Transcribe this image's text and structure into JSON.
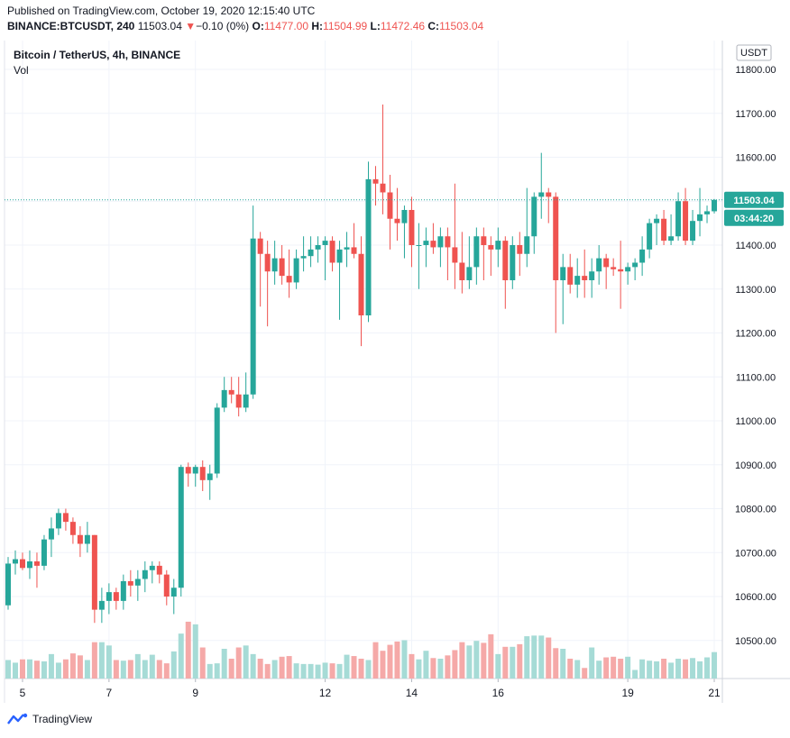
{
  "header": {
    "published": "Published on TradingView.com, October 19, 2020 12:15:40 UTC",
    "symbol": "BINANCE:BTCUSDT, 240",
    "last": "11503.04",
    "change_arrow": "▼",
    "change": "−0.10 (0%)",
    "o_label": "O:",
    "o_value": "11477.00",
    "h_label": "H:",
    "h_value": "11504.99",
    "l_label": "L:",
    "l_value": "11472.46",
    "c_label": "C:",
    "c_value": "11503.04"
  },
  "legend": {
    "title": "Bitcoin / TetherUS, 4h, BINANCE",
    "volume_label": "Vol"
  },
  "brand": {
    "name": "TradingView",
    "logo_icon": "tradingview-logo-icon"
  },
  "colors": {
    "up": "#26a69a",
    "down": "#ef5350",
    "vol_up": "#a6dbd6",
    "vol_down": "#f5a9a8",
    "grid": "#f0f3fa",
    "price_line": "#26a69a"
  },
  "chart_data": {
    "type": "candlestick",
    "title": "Bitcoin / TetherUS, 4h, BINANCE",
    "currency_label": "USDT",
    "ylim": [
      10420,
      11830
    ],
    "y_ticks": [
      "10500.00",
      "10600.00",
      "10700.00",
      "10800.00",
      "10900.00",
      "11000.00",
      "11100.00",
      "11200.00",
      "11300.00",
      "11400.00",
      "11500.00",
      "11600.00",
      "11700.00",
      "11800.00"
    ],
    "x_ticks": [
      {
        "label": "5",
        "index": 2
      },
      {
        "label": "7",
        "index": 14
      },
      {
        "label": "9",
        "index": 26
      },
      {
        "label": "12",
        "index": 44
      },
      {
        "label": "14",
        "index": 56
      },
      {
        "label": "16",
        "index": 68
      },
      {
        "label": "19",
        "index": 86
      },
      {
        "label": "21",
        "index": 98
      }
    ],
    "bar_count": 99,
    "last_price": "11503.04",
    "countdown": "03:44:20",
    "grid": true,
    "candles": [
      [
        10580,
        10690,
        10570,
        10675
      ],
      [
        10675,
        10705,
        10650,
        10685
      ],
      [
        10685,
        10700,
        10660,
        10665
      ],
      [
        10665,
        10705,
        10640,
        10680
      ],
      [
        10680,
        10700,
        10620,
        10670
      ],
      [
        10670,
        10740,
        10660,
        10730
      ],
      [
        10730,
        10780,
        10690,
        10755
      ],
      [
        10755,
        10800,
        10740,
        10790
      ],
      [
        10790,
        10800,
        10750,
        10770
      ],
      [
        10770,
        10780,
        10720,
        10740
      ],
      [
        10740,
        10760,
        10690,
        10720
      ],
      [
        10720,
        10770,
        10700,
        10740
      ],
      [
        10740,
        10740,
        10540,
        10570
      ],
      [
        10570,
        10620,
        10540,
        10590
      ],
      [
        10590,
        10630,
        10560,
        10610
      ],
      [
        10610,
        10620,
        10570,
        10590
      ],
      [
        10590,
        10650,
        10570,
        10635
      ],
      [
        10635,
        10660,
        10600,
        10625
      ],
      [
        10625,
        10660,
        10590,
        10640
      ],
      [
        10640,
        10680,
        10610,
        10660
      ],
      [
        10660,
        10680,
        10630,
        10670
      ],
      [
        10670,
        10680,
        10630,
        10650
      ],
      [
        10650,
        10660,
        10580,
        10600
      ],
      [
        10600,
        10640,
        10560,
        10620
      ],
      [
        10620,
        10900,
        10600,
        10895
      ],
      [
        10895,
        10905,
        10850,
        10880
      ],
      [
        10880,
        10900,
        10850,
        10895
      ],
      [
        10895,
        10910,
        10840,
        10865
      ],
      [
        10865,
        10900,
        10820,
        10880
      ],
      [
        10880,
        11040,
        10870,
        11030
      ],
      [
        11030,
        11100,
        11020,
        11070
      ],
      [
        11070,
        11100,
        11040,
        11060
      ],
      [
        11060,
        11100,
        11010,
        11030
      ],
      [
        11030,
        11110,
        11020,
        11060
      ],
      [
        11060,
        11490,
        11050,
        11415
      ],
      [
        11415,
        11430,
        11260,
        11380
      ],
      [
        11380,
        11410,
        11215,
        11340
      ],
      [
        11340,
        11410,
        11310,
        11370
      ],
      [
        11370,
        11400,
        11310,
        11330
      ],
      [
        11330,
        11390,
        11280,
        11315
      ],
      [
        11315,
        11390,
        11300,
        11370
      ],
      [
        11370,
        11420,
        11340,
        11375
      ],
      [
        11375,
        11420,
        11350,
        11390
      ],
      [
        11390,
        11420,
        11360,
        11400
      ],
      [
        11400,
        11420,
        11320,
        11410
      ],
      [
        11410,
        11420,
        11340,
        11360
      ],
      [
        11360,
        11410,
        11230,
        11390
      ],
      [
        11390,
        11430,
        11350,
        11395
      ],
      [
        11395,
        11450,
        11370,
        11380
      ],
      [
        11380,
        11420,
        11170,
        11240
      ],
      [
        11240,
        11590,
        11225,
        11550
      ],
      [
        11550,
        11580,
        11490,
        11540
      ],
      [
        11540,
        11720,
        11470,
        11520
      ],
      [
        11520,
        11560,
        11390,
        11460
      ],
      [
        11460,
        11530,
        11410,
        11450
      ],
      [
        11450,
        11490,
        11370,
        11480
      ],
      [
        11480,
        11510,
        11350,
        11400
      ],
      [
        11400,
        11450,
        11300,
        11400
      ],
      [
        11400,
        11440,
        11350,
        11410
      ],
      [
        11410,
        11450,
        11380,
        11395
      ],
      [
        11395,
        11440,
        11350,
        11420
      ],
      [
        11420,
        11440,
        11320,
        11395
      ],
      [
        11395,
        11540,
        11300,
        11360
      ],
      [
        11360,
        11430,
        11290,
        11320
      ],
      [
        11320,
        11420,
        11300,
        11350
      ],
      [
        11350,
        11440,
        11310,
        11420
      ],
      [
        11420,
        11440,
        11320,
        11400
      ],
      [
        11400,
        11420,
        11330,
        11390
      ],
      [
        11390,
        11440,
        11350,
        11410
      ],
      [
        11410,
        11420,
        11255,
        11320
      ],
      [
        11320,
        11420,
        11300,
        11400
      ],
      [
        11400,
        11430,
        11330,
        11380
      ],
      [
        11380,
        11530,
        11350,
        11420
      ],
      [
        11420,
        11520,
        11380,
        11510
      ],
      [
        11510,
        11610,
        11460,
        11520
      ],
      [
        11520,
        11530,
        11450,
        11510
      ],
      [
        11510,
        11520,
        11200,
        11320
      ],
      [
        11320,
        11380,
        11220,
        11350
      ],
      [
        11350,
        11380,
        11290,
        11310
      ],
      [
        11310,
        11370,
        11280,
        11330
      ],
      [
        11330,
        11390,
        11280,
        11320
      ],
      [
        11320,
        11370,
        11280,
        11340
      ],
      [
        11340,
        11400,
        11310,
        11370
      ],
      [
        11370,
        11380,
        11300,
        11350
      ],
      [
        11350,
        11370,
        11330,
        11345
      ],
      [
        11345,
        11410,
        11255,
        11340
      ],
      [
        11340,
        11360,
        11310,
        11350
      ],
      [
        11350,
        11370,
        11320,
        11360
      ],
      [
        11360,
        11420,
        11330,
        11390
      ],
      [
        11390,
        11460,
        11370,
        11450
      ],
      [
        11450,
        11470,
        11400,
        11460
      ],
      [
        11460,
        11480,
        11400,
        11410
      ],
      [
        11410,
        11470,
        11400,
        11420
      ],
      [
        11420,
        11520,
        11410,
        11500
      ],
      [
        11500,
        11530,
        11400,
        11410
      ],
      [
        11410,
        11480,
        11400,
        11455
      ],
      [
        11455,
        11530,
        11420,
        11470
      ],
      [
        11470,
        11490,
        11450,
        11477
      ],
      [
        11477,
        11505,
        11472,
        11503
      ]
    ],
    "volume_ylim": [
      0,
      150
    ],
    "volumes": [
      28,
      24,
      29,
      29,
      27,
      26,
      37,
      24,
      29,
      38,
      35,
      28,
      55,
      55,
      50,
      28,
      27,
      28,
      37,
      28,
      36,
      28,
      23,
      41,
      68,
      86,
      82,
      47,
      22,
      23,
      45,
      30,
      47,
      50,
      37,
      30,
      22,
      28,
      33,
      34,
      23,
      22,
      22,
      21,
      24,
      23,
      22,
      36,
      34,
      30,
      28,
      55,
      42,
      51,
      56,
      58,
      37,
      29,
      42,
      31,
      30,
      35,
      43,
      55,
      50,
      57,
      54,
      67,
      37,
      48,
      48,
      52,
      64,
      65,
      65,
      62,
      46,
      45,
      30,
      28,
      16,
      47,
      27,
      32,
      33,
      30,
      33,
      13,
      29,
      27,
      26,
      30,
      24,
      30,
      29,
      31,
      26,
      32,
      40
    ]
  }
}
